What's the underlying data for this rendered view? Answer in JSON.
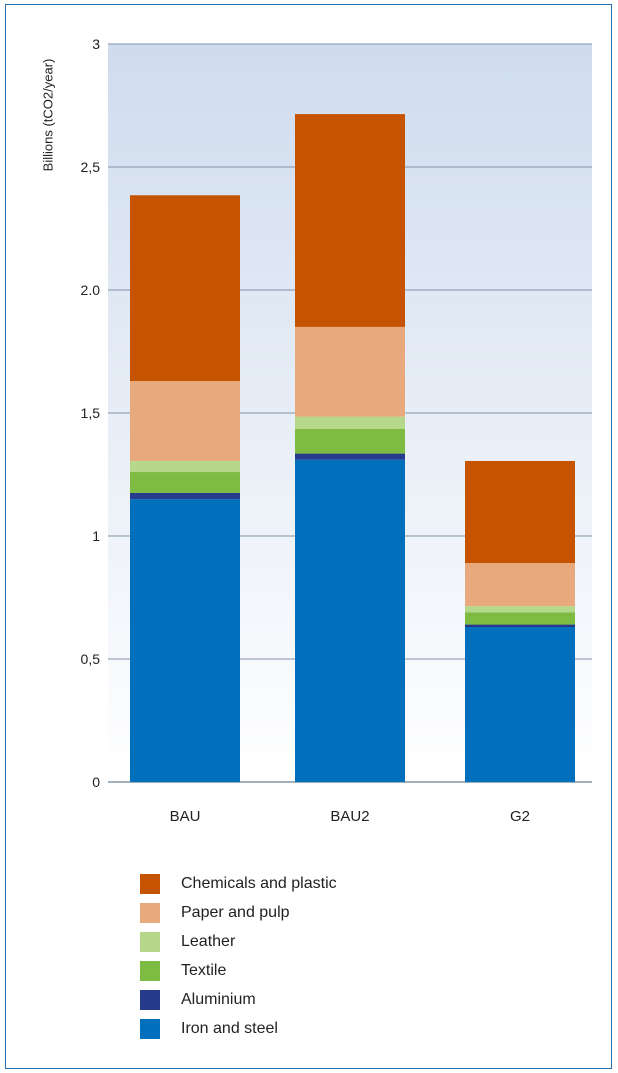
{
  "chart_data": {
    "type": "bar",
    "stacked": true,
    "ylabel": "Billions (tCO2/year)",
    "ylim": [
      0,
      3
    ],
    "yticks": [
      {
        "value": 0,
        "label": "0"
      },
      {
        "value": 0.5,
        "label": "0,5"
      },
      {
        "value": 1,
        "label": "1"
      },
      {
        "value": 1.5,
        "label": "1,5"
      },
      {
        "value": 2,
        "label": "2.0"
      },
      {
        "value": 2.5,
        "label": "2,5"
      },
      {
        "value": 3,
        "label": "3"
      }
    ],
    "grid": true,
    "categories": [
      "BAU",
      "BAU2",
      "G2"
    ],
    "series": [
      {
        "name": "Iron and steel",
        "color": "#0070bc",
        "values": [
          1.15,
          1.31,
          0.63
        ]
      },
      {
        "name": "Aluminium",
        "color": "#263b8c",
        "values": [
          0.025,
          0.025,
          0.01
        ]
      },
      {
        "name": "Textile",
        "color": "#7dbb42",
        "values": [
          0.085,
          0.1,
          0.05
        ]
      },
      {
        "name": "Leather",
        "color": "#b5d88a",
        "values": [
          0.045,
          0.05,
          0.025
        ]
      },
      {
        "name": "Paper and pulp",
        "color": "#e8aa7c",
        "values": [
          0.325,
          0.365,
          0.175
        ]
      },
      {
        "name": "Chemicals and plastic",
        "color": "#c65300",
        "values": [
          0.755,
          0.865,
          0.415
        ]
      }
    ],
    "legend_position": "bottom",
    "legend_order": [
      "Chemicals and plastic",
      "Paper and pulp",
      "Leather",
      "Textile",
      "Aluminium",
      "Iron and steel"
    ]
  }
}
